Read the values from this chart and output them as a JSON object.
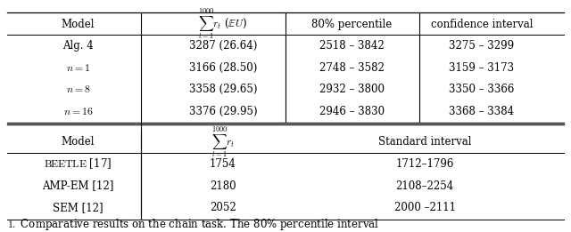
{
  "top_header": [
    "Model",
    "$\\sum_{t=1}^{1000} r_t$ ($\\mathbb{E}U$)",
    "80% percentile",
    "confidence interval"
  ],
  "top_rows": [
    [
      "Alg. 4",
      "3287 (26.64)",
      "2518 – 3842",
      "3275 – 3299"
    ],
    [
      "$n = 1$",
      "3166 (28.50)",
      "2748 – 3582",
      "3159 – 3173"
    ],
    [
      "$n = 8$",
      "3358 (29.65)",
      "2932 – 3800",
      "3350 – 3366"
    ],
    [
      "$n = 16$",
      "3376 (29.95)",
      "2946 – 3830",
      "3368 – 3384"
    ]
  ],
  "bot_header": [
    "Model",
    "$\\sum_{t=1}^{1000} r_t$",
    "Standard interval"
  ],
  "bot_rows": [
    [
      "\\textsc{Beetle} [17]",
      "1754",
      "1712–1796"
    ],
    [
      "AMP-EM [12]",
      "2180",
      "2108–2254"
    ],
    [
      "SEM [12]",
      "2052",
      "2000 –2111"
    ]
  ],
  "caption": "\\textbf{1.} Comparative results on the chain task. The 80% percentile interval",
  "bg_color": "#ffffff",
  "text_color": "#000000",
  "figsize": [
    6.4,
    2.61
  ],
  "dpi": 100
}
